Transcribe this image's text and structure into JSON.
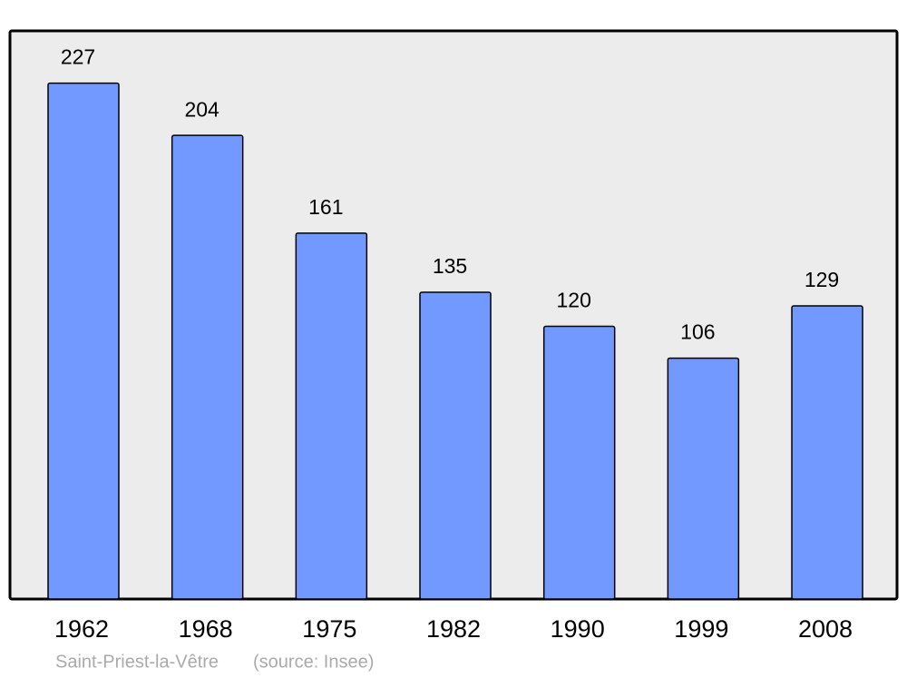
{
  "chart_data": {
    "type": "bar",
    "categories": [
      "1962",
      "1968",
      "1975",
      "1982",
      "1990",
      "1999",
      "2008"
    ],
    "values": [
      227,
      204,
      161,
      135,
      120,
      106,
      129
    ],
    "color": "#7299ff",
    "ylim": [
      0,
      250
    ],
    "caption": "Saint-Priest-la-Vêtre",
    "source": "(source: Insee)"
  }
}
